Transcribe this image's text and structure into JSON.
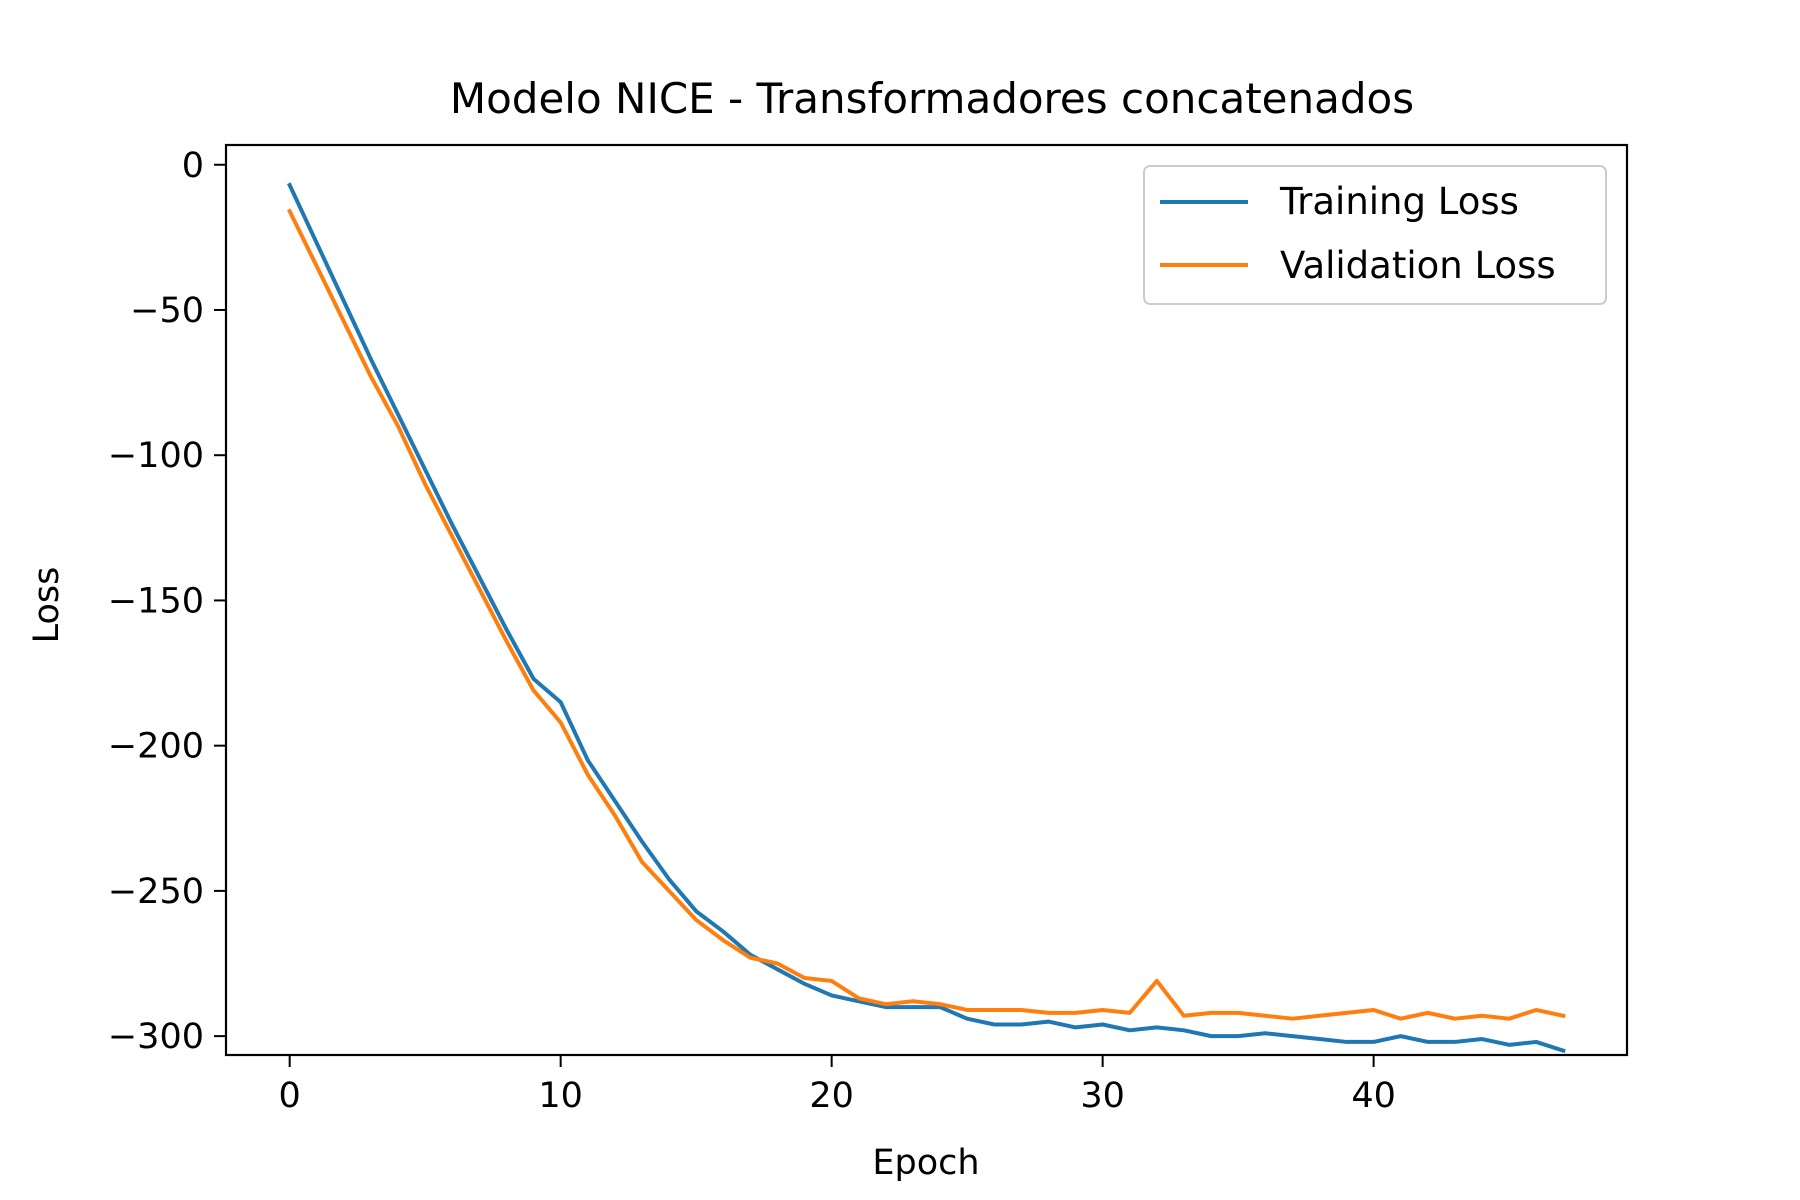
{
  "chart_data": {
    "type": "line",
    "title": "Modelo NICE - Transformadores concatenados",
    "xlabel": "Epoch",
    "ylabel": "Loss",
    "xlim": [
      -2.35,
      49.35
    ],
    "ylim": [
      -306.5,
      6.8
    ],
    "xticks": [
      0,
      10,
      20,
      30,
      40
    ],
    "xtick_labels": [
      "0",
      "10",
      "20",
      "30",
      "40"
    ],
    "yticks": [
      0,
      -50,
      -100,
      -150,
      -200,
      -250,
      -300
    ],
    "ytick_labels": [
      "0",
      "−50",
      "−100",
      "−150",
      "−200",
      "−250",
      "−300"
    ],
    "grid": false,
    "legend_position": "top-right",
    "series": [
      {
        "name": "Training Loss",
        "color": "#1f77b4",
        "x": [
          0,
          1,
          2,
          3,
          4,
          5,
          6,
          7,
          8,
          9,
          10,
          11,
          12,
          13,
          14,
          15,
          16,
          17,
          18,
          19,
          20,
          21,
          22,
          23,
          24,
          25,
          26,
          27,
          28,
          29,
          30,
          31,
          32,
          33,
          34,
          35,
          36,
          37,
          38,
          39,
          40,
          41,
          42,
          43,
          44,
          45,
          46,
          47
        ],
        "values": [
          -7,
          -27,
          -47,
          -67,
          -86,
          -105,
          -124,
          -142,
          -160,
          -177,
          -185,
          -205,
          -219,
          -233,
          -246,
          -257,
          -264,
          -272,
          -277,
          -282,
          -286,
          -288,
          -290,
          -290,
          -290,
          -294,
          -296,
          -296,
          -295,
          -297,
          -296,
          -298,
          -297,
          -298,
          -300,
          -300,
          -299,
          -300,
          -301,
          -302,
          -302,
          -300,
          -302,
          -302,
          -301,
          -303,
          -302,
          -305
        ]
      },
      {
        "name": "Validation Loss",
        "color": "#ff7f0e",
        "x": [
          0,
          1,
          2,
          3,
          4,
          5,
          6,
          7,
          8,
          9,
          10,
          11,
          12,
          13,
          14,
          15,
          16,
          17,
          18,
          19,
          20,
          21,
          22,
          23,
          24,
          25,
          26,
          27,
          28,
          29,
          30,
          31,
          32,
          33,
          34,
          35,
          36,
          37,
          38,
          39,
          40,
          41,
          42,
          43,
          44,
          45,
          46,
          47
        ],
        "values": [
          -16,
          -35,
          -54,
          -73,
          -90,
          -110,
          -128,
          -146,
          -164,
          -181,
          -192,
          -210,
          -224,
          -240,
          -250,
          -260,
          -267,
          -273,
          -275,
          -280,
          -281,
          -287,
          -289,
          -288,
          -289,
          -291,
          -291,
          -291,
          -292,
          -292,
          -291,
          -292,
          -281,
          -293,
          -292,
          -292,
          -293,
          -294,
          -293,
          -292,
          -291,
          -294,
          -292,
          -294,
          -293,
          -294,
          -291,
          -293
        ]
      }
    ]
  }
}
